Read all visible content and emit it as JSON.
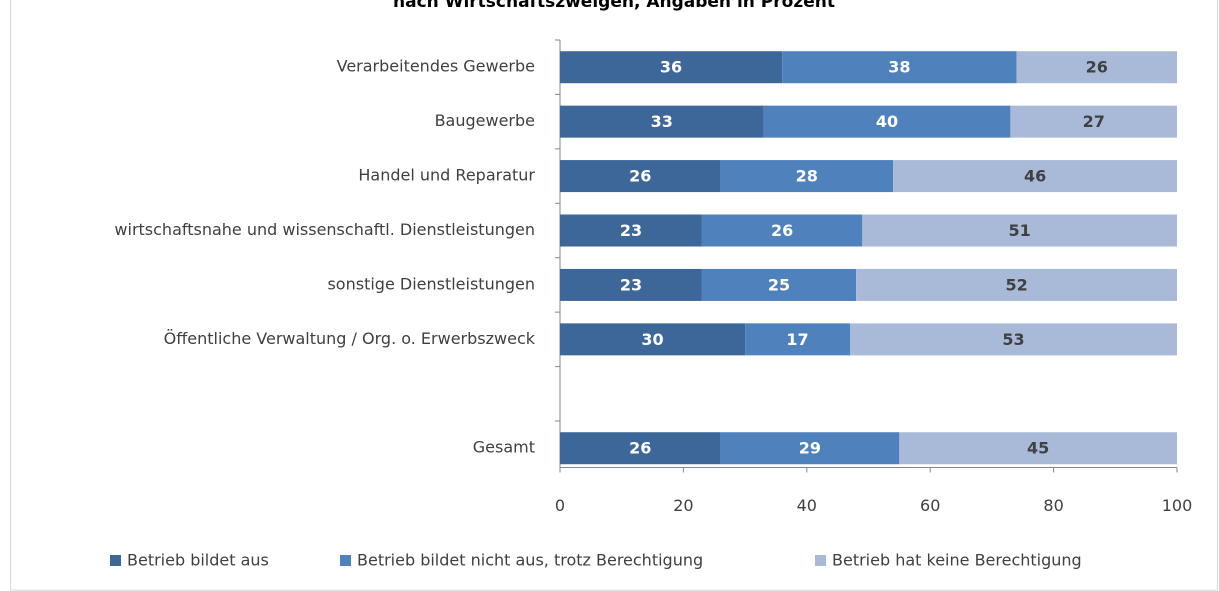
{
  "chart_data": {
    "type": "stacked-bar-horizontal",
    "title": "nach Wirtschaftszweigen, Angaben in Prozent",
    "categories": [
      "Verarbeitendes Gewerbe",
      "Baugewerbe",
      "Handel und Reparatur",
      "wirtschaftsnahe und wissenschaftl. Dienstleistungen",
      "sonstige Dienstleistungen",
      "Öffentliche Verwaltung / Org. o. Erwerbszweck",
      null,
      "Gesamt"
    ],
    "series": [
      {
        "name": "Betrieb bildet aus",
        "color": "#3d6699",
        "label_color": "#ffffff",
        "values": [
          36,
          33,
          26,
          23,
          23,
          30,
          null,
          26
        ]
      },
      {
        "name": "Betrieb bildet nicht aus, trotz Berechtigung",
        "color": "#4f81bd",
        "label_color": "#ffffff",
        "values": [
          38,
          40,
          28,
          26,
          25,
          17,
          null,
          29
        ]
      },
      {
        "name": "Betrieb hat keine Berechtigung",
        "color": "#a9bad9",
        "label_color": "#404040",
        "values": [
          26,
          27,
          46,
          51,
          52,
          53,
          null,
          45
        ]
      }
    ],
    "xlim": [
      0,
      100
    ],
    "xticks": [
      0,
      20,
      40,
      60,
      80,
      100
    ],
    "legend": "bottom"
  }
}
